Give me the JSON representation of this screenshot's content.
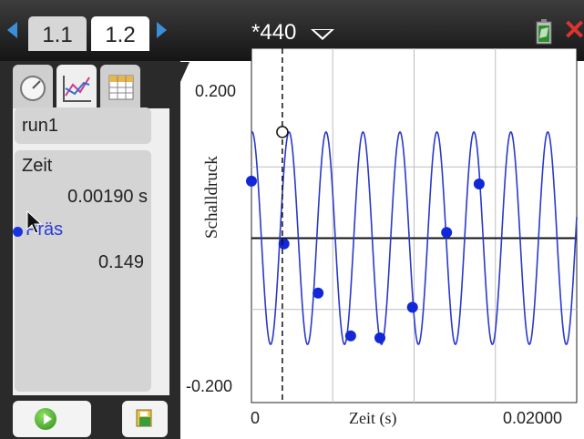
{
  "tabs": [
    {
      "label": "1.1"
    },
    {
      "label": "1.2"
    }
  ],
  "document": {
    "title": "*440"
  },
  "left_panel": {
    "run": "run1",
    "time_label": "Zeit",
    "time_value": "0.00190 s",
    "pressure_label": "Präs",
    "pressure_value": "0.149"
  },
  "chart_data": {
    "type": "line",
    "xlabel": "Zeit (s)",
    "ylabel": "Schalldruck",
    "ytick_top": "0.200",
    "ytick_bottom": "-0.200",
    "xtick_left": "0",
    "xtick_right": "0.02000",
    "xlim": [
      0,
      0.02
    ],
    "ylim": [
      -0.22,
      0.22
    ],
    "frequency_hz": 440,
    "amplitude": 0.149,
    "phase_rad": 0.03,
    "cursor_x": 0.0019,
    "cursor_y": 0.149,
    "points": [
      {
        "x": 0.0,
        "y": 0.08
      },
      {
        "x": 0.002,
        "y": -0.008
      },
      {
        "x": 0.0041,
        "y": -0.077
      },
      {
        "x": 0.0061,
        "y": -0.137
      },
      {
        "x": 0.0079,
        "y": -0.14
      },
      {
        "x": 0.0099,
        "y": -0.097
      },
      {
        "x": 0.012,
        "y": 0.008
      },
      {
        "x": 0.014,
        "y": 0.076
      }
    ],
    "colors": {
      "series": "#2a39c9",
      "points": "#1228d8",
      "grid": "#bdbdbd"
    }
  }
}
